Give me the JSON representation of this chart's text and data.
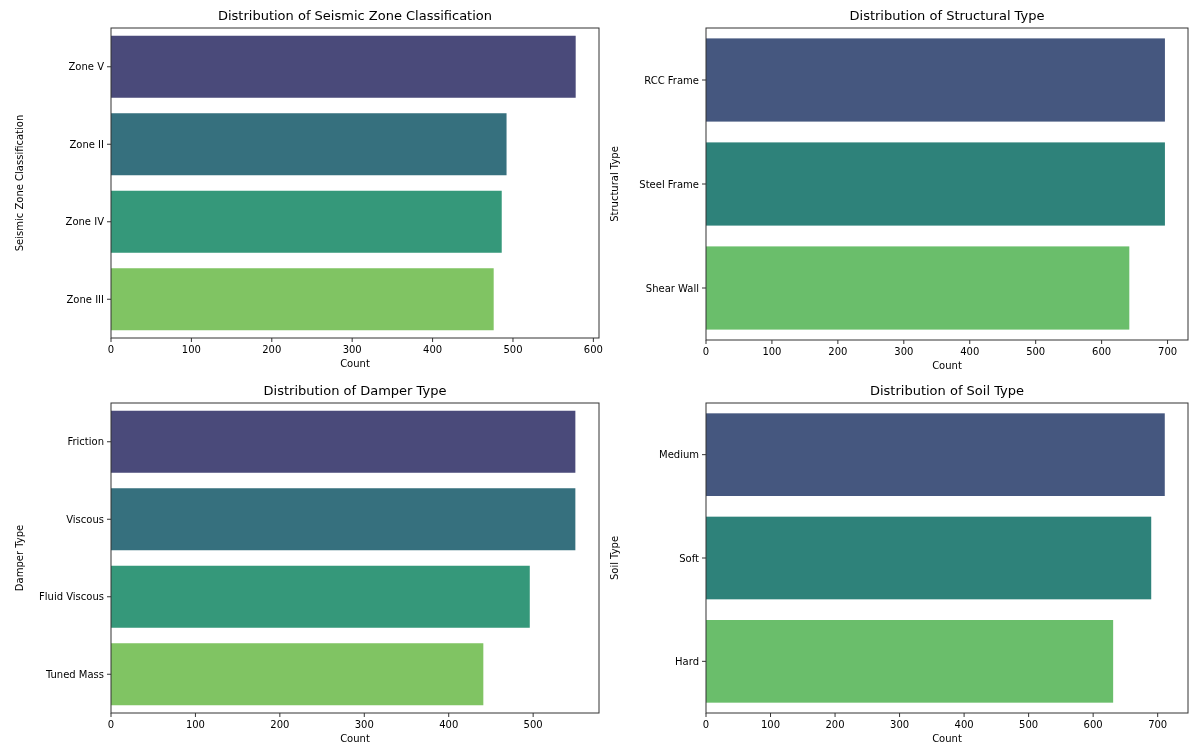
{
  "chart_data": [
    {
      "type": "bar",
      "orientation": "horizontal",
      "title": "Distribution of Seismic Zone Classification",
      "xlabel": "Count",
      "ylabel": "Seismic Zone Classification",
      "categories": [
        "Zone V",
        "Zone II",
        "Zone IV",
        "Zone III"
      ],
      "values": [
        578,
        492,
        486,
        476
      ],
      "colors": [
        "#4a4a7a",
        "#36707e",
        "#35987a",
        "#80c463"
      ],
      "xlim": [
        0,
        607
      ],
      "xticks": [
        0,
        100,
        200,
        300,
        400,
        500,
        600
      ]
    },
    {
      "type": "bar",
      "orientation": "horizontal",
      "title": "Distribution of Structural Type",
      "xlabel": "Count",
      "ylabel": "Structural Type",
      "categories": [
        "RCC Frame",
        "Steel Frame",
        "Shear Wall"
      ],
      "values": [
        696,
        696,
        642
      ],
      "colors": [
        "#45577f",
        "#2e827a",
        "#6abe6b"
      ],
      "xlim": [
        0,
        731
      ],
      "xticks": [
        0,
        100,
        200,
        300,
        400,
        500,
        600,
        700
      ]
    },
    {
      "type": "bar",
      "orientation": "horizontal",
      "title": "Distribution of Damper Type",
      "xlabel": "Count",
      "ylabel": "Damper Type",
      "categories": [
        "Friction",
        "Viscous",
        "Fluid Viscous",
        "Tuned Mass"
      ],
      "values": [
        550,
        550,
        496,
        441
      ],
      "colors": [
        "#4a4a7a",
        "#36707e",
        "#35987a",
        "#80c463"
      ],
      "xlim": [
        0,
        578
      ],
      "xticks": [
        0,
        100,
        200,
        300,
        400,
        500
      ]
    },
    {
      "type": "bar",
      "orientation": "horizontal",
      "title": "Distribution of Soil Type",
      "xlabel": "Count",
      "ylabel": "Soil Type",
      "categories": [
        "Medium",
        "Soft",
        "Hard"
      ],
      "values": [
        711,
        690,
        631
      ],
      "colors": [
        "#45577f",
        "#2e827a",
        "#6abe6b"
      ],
      "xlim": [
        0,
        747
      ],
      "xticks": [
        0,
        100,
        200,
        300,
        400,
        500,
        600,
        700
      ]
    }
  ]
}
